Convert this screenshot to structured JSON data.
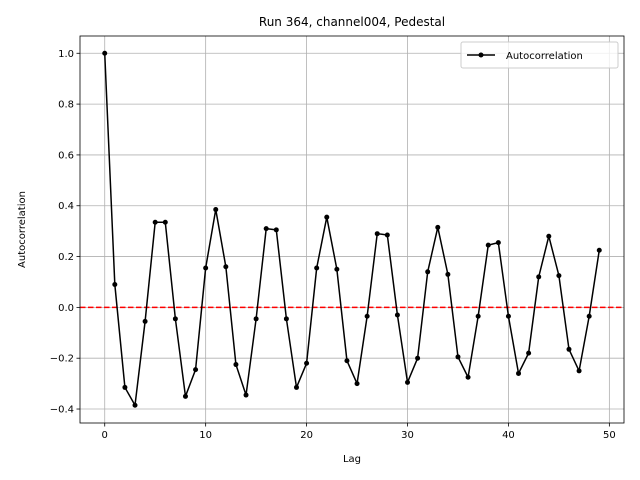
{
  "chart_data": {
    "type": "line",
    "title": "Run 364, channel004, Pedestal",
    "xlabel": "Lag",
    "ylabel": "Autocorrelation",
    "xlim": [
      -2.45,
      51.45
    ],
    "ylim": [
      -0.455,
      1.068
    ],
    "xticks": [
      0,
      10,
      20,
      30,
      40,
      50
    ],
    "yticks": [
      -0.4,
      -0.2,
      0.0,
      0.2,
      0.4,
      0.6,
      0.8,
      1.0
    ],
    "xtick_labels": [
      "0",
      "10",
      "20",
      "30",
      "40",
      "50"
    ],
    "ytick_labels": [
      "−0.4",
      "−0.2",
      "0.0",
      "0.2",
      "0.4",
      "0.6",
      "0.8",
      "1.0"
    ],
    "grid": true,
    "legend_position": "top-right",
    "series": [
      {
        "name": "Autocorrelation",
        "color": "#000000",
        "marker": "circle",
        "x": [
          0,
          1,
          2,
          3,
          4,
          5,
          6,
          7,
          8,
          9,
          10,
          11,
          12,
          13,
          14,
          15,
          16,
          17,
          18,
          19,
          20,
          21,
          22,
          23,
          24,
          25,
          26,
          27,
          28,
          29,
          30,
          31,
          32,
          33,
          34,
          35,
          36,
          37,
          38,
          39,
          40,
          41,
          42,
          43,
          44,
          45,
          46,
          47,
          48,
          49
        ],
        "y": [
          1.0,
          0.09,
          -0.315,
          -0.385,
          -0.055,
          0.335,
          0.335,
          -0.045,
          -0.35,
          -0.245,
          0.155,
          0.385,
          0.16,
          -0.225,
          -0.345,
          -0.045,
          0.31,
          0.305,
          -0.045,
          -0.315,
          -0.22,
          0.155,
          0.355,
          0.15,
          -0.21,
          -0.3,
          -0.035,
          0.29,
          0.285,
          -0.03,
          -0.295,
          -0.2,
          0.14,
          0.315,
          0.13,
          -0.195,
          -0.275,
          -0.035,
          0.245,
          0.255,
          -0.035,
          -0.26,
          -0.18,
          0.12,
          0.28,
          0.125,
          -0.165,
          -0.25,
          -0.035,
          0.225
        ]
      }
    ],
    "reference_line": {
      "y": 0,
      "color": "#ff0000",
      "style": "dashed"
    }
  }
}
